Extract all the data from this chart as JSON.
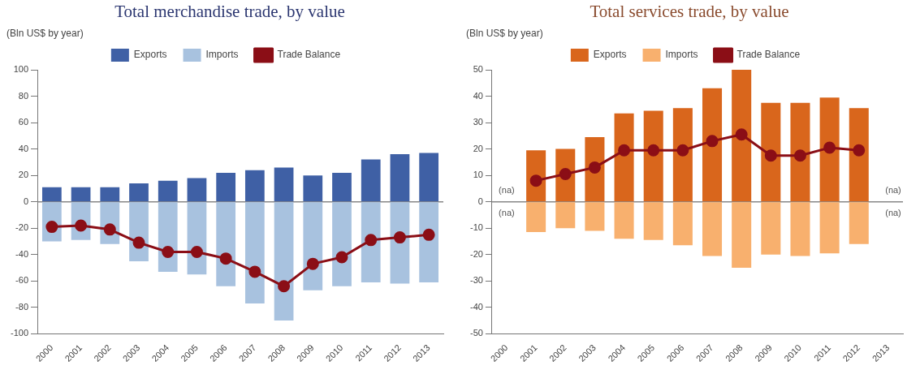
{
  "chart_data": [
    {
      "type": "bar",
      "title": "Total merchandise trade, by value",
      "ylabel": "(Bln US$ by year)",
      "categories": [
        "2000",
        "2001",
        "2002",
        "2003",
        "2004",
        "2005",
        "2006",
        "2007",
        "2008",
        "2009",
        "2010",
        "2011",
        "2012",
        "2013"
      ],
      "stacked": true,
      "ylim": [
        -100,
        100
      ],
      "yticks": [
        -100,
        -80,
        -60,
        -40,
        -20,
        0,
        20,
        40,
        60,
        80,
        100
      ],
      "legend": "top",
      "marker": "circle",
      "line_style": "solid",
      "ref_lines": [
        {
          "axis": "y",
          "value": 0,
          "color": "#888888"
        }
      ],
      "series": [
        {
          "name": "Exports",
          "color": "#3f60a5",
          "values": [
            11,
            11,
            11,
            14,
            16,
            18,
            22,
            24,
            26,
            20,
            22,
            32,
            36,
            37
          ]
        },
        {
          "name": "Imports",
          "color": "#a8c2df",
          "values": [
            -30,
            -29,
            -32,
            -45,
            -53,
            -55,
            -64,
            -77,
            -90,
            -67,
            -64,
            -61,
            -62,
            -61
          ]
        },
        {
          "name": "Trade Balance",
          "type": "line",
          "color": "#8b0e16",
          "values": [
            -19,
            -18,
            -21,
            -31,
            -38,
            -38,
            -43,
            -53,
            -64,
            -47,
            -42,
            -29,
            -27,
            -25
          ]
        }
      ]
    },
    {
      "type": "bar",
      "title": "Total services trade, by value",
      "ylabel": "(Bln US$ by year)",
      "categories": [
        "2000",
        "2001",
        "2002",
        "2003",
        "2004",
        "2005",
        "2006",
        "2007",
        "2008",
        "2009",
        "2010",
        "2011",
        "2012",
        "2013"
      ],
      "stacked": true,
      "ylim": [
        -50,
        50
      ],
      "yticks": [
        -50,
        -40,
        -30,
        -20,
        -10,
        0,
        10,
        20,
        30,
        40,
        50
      ],
      "legend": "top",
      "marker": "circle",
      "line_style": "solid",
      "ref_lines": [
        {
          "axis": "y",
          "value": 0,
          "color": "#888888"
        }
      ],
      "annotations": [
        "(na)",
        "(na)",
        "(na)",
        "(na)"
      ],
      "series": [
        {
          "name": "Exports",
          "color": "#d9661c",
          "values": [
            null,
            19.5,
            20,
            24.5,
            33.5,
            34.5,
            35.5,
            43,
            50,
            37.5,
            37.5,
            39.5,
            35.5,
            null
          ]
        },
        {
          "name": "Imports",
          "color": "#f8b06e",
          "values": [
            null,
            -11.5,
            -10,
            -11,
            -14,
            -14.5,
            -16.5,
            -20.5,
            -25,
            -20,
            -20.5,
            -19.5,
            -16,
            null
          ]
        },
        {
          "name": "Trade Balance",
          "type": "line",
          "color": "#8b0e16",
          "values": [
            null,
            8,
            10.5,
            13,
            19.5,
            19.5,
            19.5,
            23,
            25.5,
            17.5,
            17.5,
            20.5,
            19.5,
            null
          ]
        }
      ]
    }
  ]
}
